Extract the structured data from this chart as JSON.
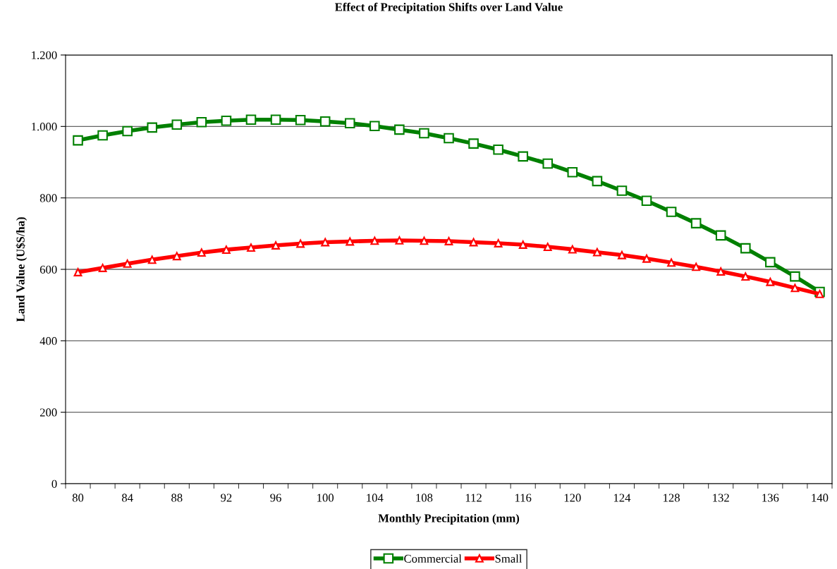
{
  "chart_data": {
    "type": "line",
    "title": "Effect of Precipitation Shifts over Land Value",
    "xlabel": "Monthly Precipitation (mm)",
    "ylabel": "Land Value (U$S/ha)",
    "categories": [
      "80",
      null,
      "84",
      null,
      "88",
      null,
      "92",
      null,
      "96",
      null,
      "100",
      null,
      "104",
      null,
      "108",
      null,
      "112",
      null,
      "116",
      null,
      "120",
      null,
      "124",
      null,
      "128",
      null,
      "132",
      null,
      "136",
      null,
      "140"
    ],
    "series": [
      {
        "name": "Commercial",
        "color": "#008000",
        "marker": "square",
        "values": [
          961,
          975,
          987,
          997,
          1005,
          1012,
          1016,
          1019,
          1019,
          1018,
          1014,
          1009,
          1001,
          991,
          981,
          967,
          952,
          935,
          916,
          896,
          872,
          847,
          820,
          792,
          761,
          729,
          695,
          659,
          620,
          580,
          537
        ]
      },
      {
        "name": "Small",
        "color": "#ff0000",
        "marker": "triangle",
        "values": [
          592,
          604,
          616,
          627,
          637,
          647,
          655,
          661,
          667,
          672,
          676,
          678,
          680,
          681,
          680,
          679,
          676,
          673,
          669,
          663,
          656,
          648,
          640,
          630,
          619,
          607,
          594,
          580,
          565,
          548,
          531
        ]
      }
    ],
    "ylim": [
      0,
      1200
    ],
    "yticks": [
      0,
      200,
      400,
      600,
      800,
      {
        "value": 1000,
        "label": "1.000"
      },
      {
        "value": 1200,
        "label": "1.200"
      }
    ],
    "grid": "y",
    "legend": "bottom",
    "line_style": "solid"
  }
}
